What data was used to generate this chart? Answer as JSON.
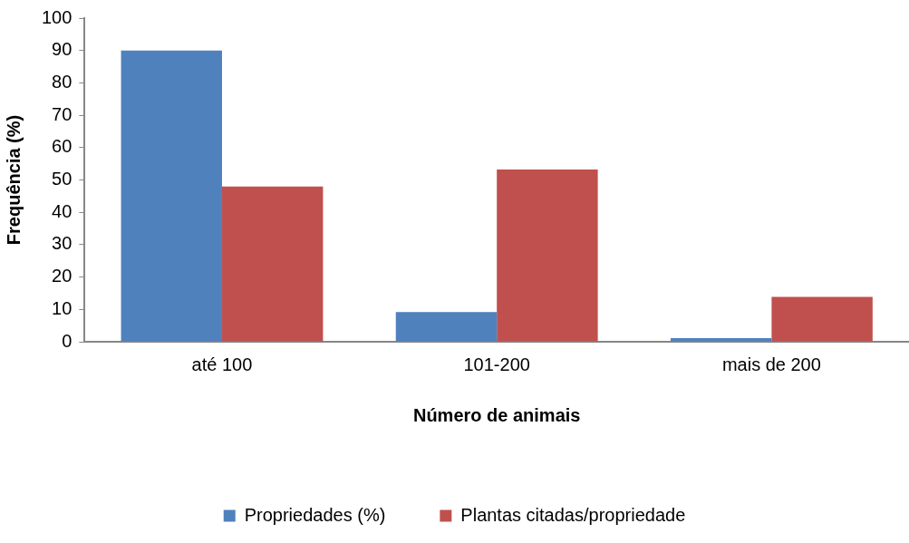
{
  "chart_data": {
    "type": "bar",
    "xlabel": "Número de animais",
    "ylabel": "Frequência (%)",
    "categories": [
      "até 100",
      "101-200",
      "mais de 200"
    ],
    "series": [
      {
        "name": "Propriedades (%)",
        "color": "#4f81bd",
        "values": [
          90,
          9.2,
          1.1
        ]
      },
      {
        "name": "Plantas citadas/propriedade",
        "color": "#c0504d",
        "values": [
          48,
          53.2,
          13.9
        ]
      }
    ],
    "ylim": [
      0,
      100
    ],
    "yticks": [
      0,
      10,
      20,
      30,
      40,
      50,
      60,
      70,
      80,
      90,
      100
    ],
    "grid": false,
    "legend": "bottom"
  }
}
